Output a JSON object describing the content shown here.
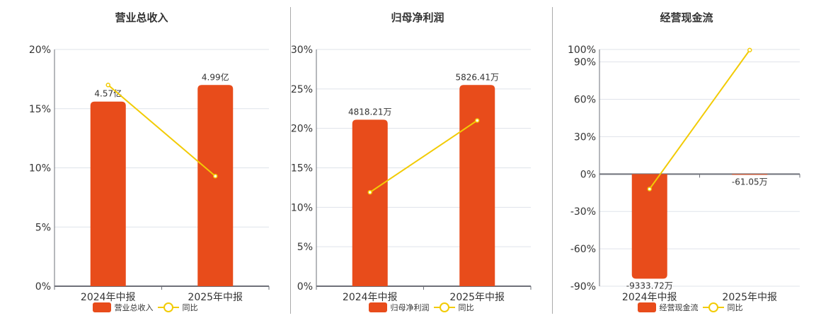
{
  "colors": {
    "bar": "#e84c1b",
    "line": "#f2cb05",
    "grid": "#dfe3ea",
    "axis": "#6e7079",
    "text": "#333333"
  },
  "chart_data": [
    {
      "type": "bar+line",
      "title": "营业总收入",
      "categories": [
        "2024年中报",
        "2025年中报"
      ],
      "series": [
        {
          "name": "营业总收入",
          "type": "bar",
          "values": [
            4.57,
            4.99
          ],
          "unit": "亿",
          "labels": [
            "4.57亿",
            "4.99亿"
          ]
        },
        {
          "name": "同比",
          "type": "line",
          "values": [
            17.0,
            9.3
          ],
          "unit": "%"
        }
      ],
      "yaxis": {
        "ticks": [
          "0%",
          "5%",
          "10%",
          "15%",
          "20%"
        ],
        "ylim": [
          0,
          20
        ]
      },
      "bar_heights_pct_axis": [
        15.6,
        17.0
      ],
      "legend": [
        "营业总收入",
        "同比"
      ],
      "legend_position": "bottom",
      "grid": true
    },
    {
      "type": "bar+line",
      "title": "归母净利润",
      "categories": [
        "2024年中报",
        "2025年中报"
      ],
      "series": [
        {
          "name": "归母净利润",
          "type": "bar",
          "values": [
            4818.21,
            5826.41
          ],
          "unit": "万",
          "labels": [
            "4818.21万",
            "5826.41万"
          ]
        },
        {
          "name": "同比",
          "type": "line",
          "values": [
            11.9,
            21.0
          ],
          "unit": "%"
        }
      ],
      "yaxis": {
        "ticks": [
          "0%",
          "5%",
          "10%",
          "15%",
          "20%",
          "25%",
          "30%"
        ],
        "ylim": [
          0,
          30
        ]
      },
      "bar_heights_pct_axis": [
        21.1,
        25.5
      ],
      "legend": [
        "归母净利润",
        "同比"
      ],
      "legend_position": "bottom",
      "grid": true
    },
    {
      "type": "bar+line",
      "title": "经营现金流",
      "categories": [
        "2024年中报",
        "2025年中报"
      ],
      "series": [
        {
          "name": "经营现金流",
          "type": "bar",
          "values": [
            -9333.72,
            -61.05
          ],
          "unit": "万",
          "labels": [
            "-9333.72万",
            "-61.05万"
          ]
        },
        {
          "name": "同比",
          "type": "line",
          "values": [
            -12.0,
            99.5
          ],
          "unit": "%"
        }
      ],
      "yaxis": {
        "ticks": [
          "-90%",
          "-60%",
          "-30%",
          "0%",
          "30%",
          "60%",
          "90%",
          "100%"
        ],
        "ylim": [
          -90,
          100
        ]
      },
      "bar_heights_pct_axis": [
        -84,
        -0.6
      ],
      "legend": [
        "经营现金流",
        "同比"
      ],
      "legend_position": "bottom",
      "grid": true
    }
  ]
}
